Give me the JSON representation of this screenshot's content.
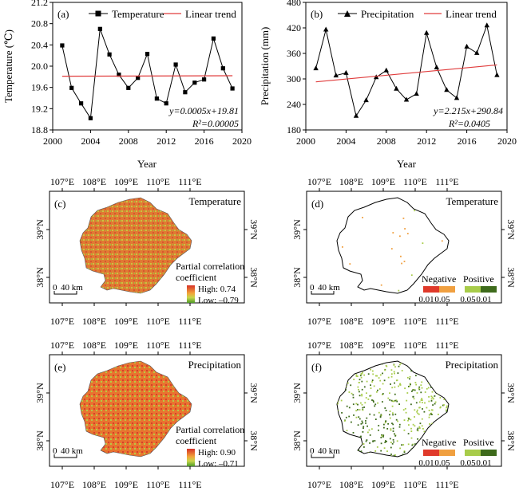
{
  "chart_data": [
    {
      "panel": "(a)",
      "type": "line",
      "legend": [
        "Temperature",
        "Linear trend"
      ],
      "legend_position": "top",
      "xlabel": "Year",
      "ylabel": "Temperature (℃)",
      "xlim": [
        2000,
        2020
      ],
      "ylim": [
        18.8,
        21.2
      ],
      "xticks": [
        "2000",
        "2004",
        "2008",
        "2012",
        "2016",
        "2020"
      ],
      "yticks": [
        "18.8",
        "19.2",
        "19.6",
        "20.0",
        "20.4",
        "20.8",
        "21.2"
      ],
      "x": [
        2001,
        2002,
        2003,
        2004,
        2005,
        2006,
        2007,
        2008,
        2009,
        2010,
        2011,
        2012,
        2013,
        2014,
        2015,
        2016,
        2017,
        2018,
        2019
      ],
      "series": [
        {
          "name": "Temperature",
          "marker": "square",
          "values": [
            20.39,
            19.59,
            19.3,
            19.02,
            20.7,
            20.22,
            19.84,
            19.59,
            19.78,
            20.23,
            19.39,
            19.3,
            20.03,
            19.51,
            19.69,
            19.75,
            20.52,
            19.96,
            19.58
          ]
        }
      ],
      "trend": {
        "name": "Linear trend",
        "slope": 0.0005,
        "intercept": 19.81,
        "x0": 2001,
        "x1": 2019,
        "color": "#e03c3c"
      },
      "equation": "y=0.0005x+19.81",
      "r2": "R²=0.00005"
    },
    {
      "panel": "(b)",
      "type": "line",
      "legend": [
        "Precipitation",
        "Linear trend"
      ],
      "legend_position": "top",
      "xlabel": "Year",
      "ylabel": "Precipitation (mm)",
      "xlim": [
        2000,
        2020
      ],
      "ylim": [
        180,
        480
      ],
      "xticks": [
        "2000",
        "2004",
        "2008",
        "2012",
        "2016",
        "2020"
      ],
      "yticks": [
        "180",
        "240",
        "300",
        "360",
        "420",
        "480"
      ],
      "x": [
        2001,
        2002,
        2003,
        2004,
        2005,
        2006,
        2007,
        2008,
        2009,
        2010,
        2011,
        2012,
        2013,
        2014,
        2015,
        2016,
        2017,
        2018,
        2019
      ],
      "series": [
        {
          "name": "Precipitation",
          "marker": "triangle",
          "values": [
            325,
            416,
            308,
            314,
            213,
            250,
            304,
            320,
            277,
            251,
            265,
            408,
            327,
            274,
            255,
            376,
            361,
            426,
            309
          ]
        }
      ],
      "trend": {
        "name": "Linear trend",
        "slope": 2.215,
        "intercept": 290.84,
        "x0": 2001,
        "x1": 2019,
        "color": "#e03c3c"
      },
      "equation": "y=2.215x+290.84",
      "r2": "R²=0.0405"
    }
  ],
  "maps": {
    "top_lon_labels": [
      "107°E",
      "108°E",
      "109°E",
      "110°E",
      "111°E"
    ],
    "bottom_lon_labels": [
      "107°E",
      "108°E",
      "109°E",
      "110°E",
      "111°E"
    ],
    "lat_labels": [
      "39°N",
      "38°N"
    ],
    "scale_text": "0",
    "scale_unit": "40 km",
    "panels": [
      {
        "label": "(c)",
        "title": "Temperature",
        "style": "continuous",
        "legend_title_1": "Partial correlation",
        "legend_title_2": "coefficient",
        "high": "High: 0.74",
        "low": "Low: –0.79"
      },
      {
        "label": "(d)",
        "title": "Temperature",
        "style": "significance",
        "density": "sparse"
      },
      {
        "label": "(e)",
        "title": "Precipitation",
        "style": "continuous",
        "legend_title_1": "Partial correlation",
        "legend_title_2": "coefficient",
        "high": "High: 0.90",
        "low": "Low: –0.71"
      },
      {
        "label": "(f)",
        "title": "Precipitation",
        "style": "significance",
        "density": "dense"
      }
    ],
    "significance_legend": {
      "negative": "Negative",
      "positive": "Positive",
      "ticks": [
        "0.01",
        "0.05",
        "0.05",
        "0.01"
      ],
      "colors": [
        "#e03a2b",
        "#f0a040",
        "#a8cc4a",
        "#3e6b1c"
      ]
    },
    "colors": {
      "high": "#d73027",
      "mid": "#f2a53a",
      "low": "#4c9a2a"
    }
  }
}
